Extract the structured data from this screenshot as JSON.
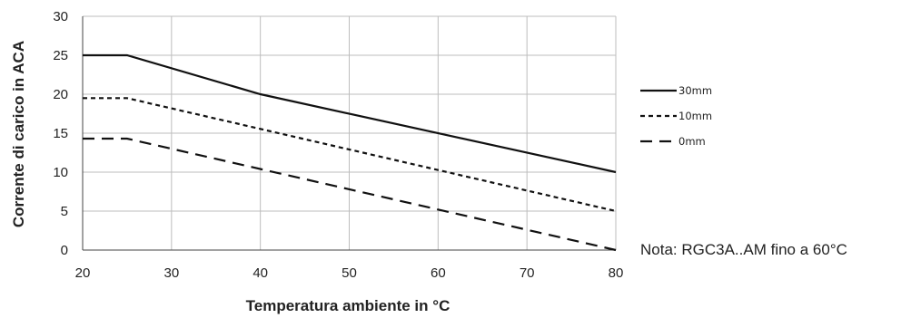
{
  "chart_data": {
    "type": "line",
    "xlabel": "Temperatura ambiente in °C",
    "ylabel": "Corrente di carico in ACA",
    "xlim": [
      20,
      80
    ],
    "ylim": [
      0,
      30
    ],
    "xticks": [
      20,
      30,
      40,
      50,
      60,
      70,
      80
    ],
    "yticks": [
      0,
      5,
      10,
      15,
      20,
      25,
      30
    ],
    "grid": true,
    "legend_position": "right",
    "note": "Nota: RGC3A..AM fino a 60°C",
    "series": [
      {
        "name": "30mm",
        "style": "solid",
        "x": [
          20,
          25,
          40,
          80
        ],
        "y": [
          25,
          25,
          20,
          10
        ]
      },
      {
        "name": "10mm",
        "style": "dashed",
        "x": [
          20,
          25,
          80
        ],
        "y": [
          19.5,
          19.5,
          5
        ]
      },
      {
        "name": "0mm",
        "style": "longdash",
        "x": [
          20,
          25,
          80
        ],
        "y": [
          14.3,
          14.3,
          0
        ]
      }
    ]
  }
}
